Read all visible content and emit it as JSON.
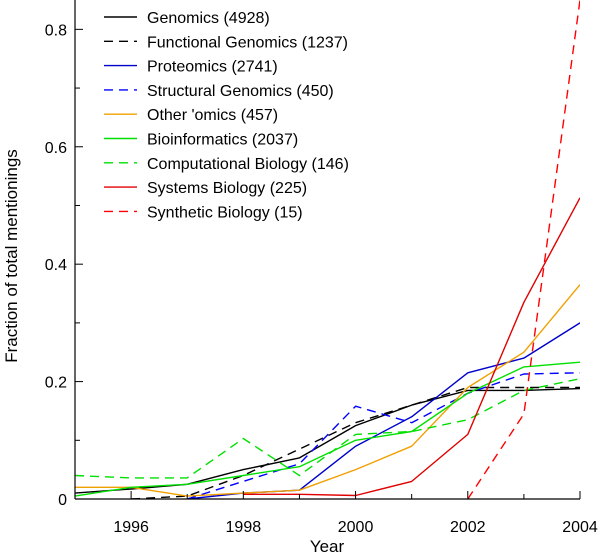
{
  "chart_data": {
    "type": "line",
    "title": "",
    "xlabel": "Year",
    "ylabel": "Fraction of total mentionings",
    "xlim": [
      1995,
      2004
    ],
    "ylim": [
      0,
      0.85
    ],
    "x_ticks": [
      1996,
      1998,
      2000,
      2002,
      2004
    ],
    "y_ticks": [
      0,
      0.2,
      0.4,
      0.6,
      0.8
    ],
    "x_tick_labels": [
      "1996",
      "1998",
      "2000",
      "2002",
      "2004"
    ],
    "y_tick_labels": [
      "0",
      "0.2",
      "0.4",
      "0.6",
      "0.8"
    ],
    "legend_position": "top-left",
    "grid": false,
    "series": [
      {
        "name": "Genomics (4928)",
        "color": "#000000",
        "dash": "solid",
        "x": [
          1995,
          1996,
          1997,
          1998,
          1999,
          2000,
          2001,
          2002,
          2003,
          2004
        ],
        "y": [
          0.01,
          0.017,
          0.025,
          0.05,
          0.07,
          0.125,
          0.16,
          0.185,
          0.185,
          0.188
        ]
      },
      {
        "name": "Functional Genomics (1237)",
        "color": "#000000",
        "dash": "dashed",
        "x": [
          1996,
          1997,
          1998,
          1999,
          2000,
          2001,
          2002,
          2003,
          2004
        ],
        "y": [
          0.0,
          0.005,
          0.04,
          0.085,
          0.13,
          0.16,
          0.19,
          0.19,
          0.19
        ]
      },
      {
        "name": "Proteomics (2741)",
        "color": "#0000cc",
        "dash": "solid",
        "x": [
          1997,
          1998,
          1999,
          2000,
          2001,
          2002,
          2003,
          2004
        ],
        "y": [
          0.0,
          0.01,
          0.015,
          0.09,
          0.14,
          0.215,
          0.24,
          0.3
        ]
      },
      {
        "name": "Structural Genomics (450)",
        "color": "#0000ff",
        "dash": "dashed",
        "x": [
          1997,
          1998,
          1999,
          2000,
          2001,
          2002,
          2003,
          2004
        ],
        "y": [
          0.0,
          0.03,
          0.06,
          0.158,
          0.13,
          0.18,
          0.213,
          0.215
        ]
      },
      {
        "name": "Other 'omics (457)",
        "color": "#f0a000",
        "dash": "solid",
        "x": [
          1995,
          1996,
          1997,
          1998,
          1999,
          2000,
          2001,
          2002,
          2003,
          2004
        ],
        "y": [
          0.02,
          0.02,
          0.005,
          0.01,
          0.015,
          0.05,
          0.09,
          0.19,
          0.25,
          0.365
        ]
      },
      {
        "name": "Bioinformatics (2037)",
        "color": "#00e000",
        "dash": "solid",
        "x": [
          1995,
          1996,
          1997,
          1998,
          1999,
          2000,
          2001,
          2002,
          2003,
          2004
        ],
        "y": [
          0.005,
          0.02,
          0.025,
          0.04,
          0.055,
          0.1,
          0.115,
          0.18,
          0.225,
          0.233
        ]
      },
      {
        "name": "Computational Biology (146)",
        "color": "#00e000",
        "dash": "dashed",
        "x": [
          1995,
          1996,
          1997,
          1998,
          1999,
          2000,
          2001,
          2002,
          2003,
          2004
        ],
        "y": [
          0.04,
          0.036,
          0.036,
          0.103,
          0.04,
          0.11,
          0.115,
          0.135,
          0.185,
          0.205
        ]
      },
      {
        "name": "Systems Biology (225)",
        "color": "#e00000",
        "dash": "solid",
        "x": [
          1998,
          1999,
          2000,
          2001,
          2002,
          2003,
          2004
        ],
        "y": [
          0.008,
          0.008,
          0.006,
          0.03,
          0.11,
          0.335,
          0.513
        ]
      },
      {
        "name": "Synthetic Biology (15)",
        "color": "#ff0000",
        "dash": "dashed",
        "x": [
          2002,
          2003,
          2004
        ],
        "y": [
          0.0,
          0.145,
          0.85
        ]
      }
    ]
  }
}
